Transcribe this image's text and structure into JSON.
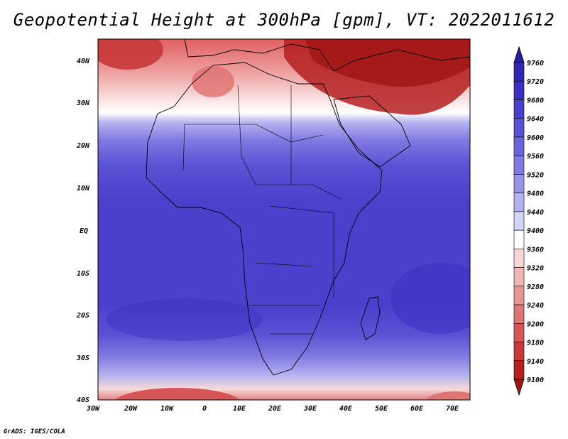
{
  "title": "Geopotential Height at 300hPa [gpm], VT: 2022011612",
  "credit": "GrADS: IGES/COLA",
  "map": {
    "lon_labels": [
      "30W",
      "20W",
      "10W",
      "0",
      "10E",
      "20E",
      "30E",
      "40E",
      "50E",
      "60E",
      "70E"
    ],
    "lat_labels": [
      "40N",
      "30N",
      "20N",
      "10N",
      "EQ",
      "10S",
      "20S",
      "30S",
      "40S"
    ],
    "lon_range": [
      -30,
      75
    ],
    "lat_range": [
      -40,
      45
    ]
  },
  "colorbar": {
    "levels": [
      "9760",
      "9720",
      "9680",
      "9640",
      "9600",
      "9560",
      "9520",
      "9480",
      "9440",
      "9400",
      "9360",
      "9320",
      "9280",
      "9240",
      "9200",
      "9180",
      "9140",
      "9100"
    ],
    "colors": [
      "#2a1e9c",
      "#3326b0",
      "#3c30c2",
      "#4a40cc",
      "#5a52d4",
      "#6b65dc",
      "#7f7ae2",
      "#9793e8",
      "#b3b1f0",
      "#d4d3f8",
      "#ffffff",
      "#f7d6d6",
      "#efb6b6",
      "#e79696",
      "#de7676",
      "#d55656",
      "#c83838",
      "#b52020",
      "#a01414"
    ]
  }
}
